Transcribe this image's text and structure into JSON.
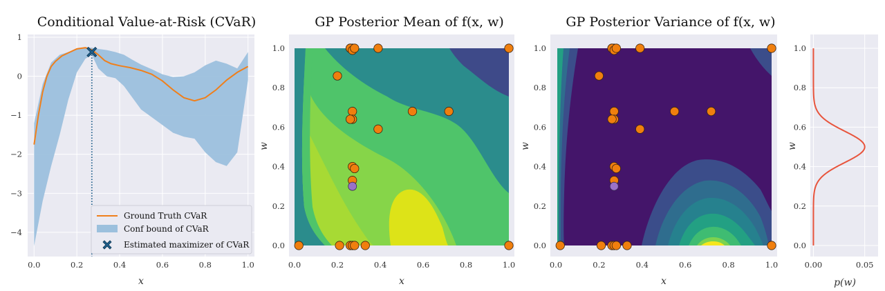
{
  "colors": {
    "axes_bg": "#eaeaf2",
    "grid": "#ffffff",
    "cvar_line": "#f07f1a",
    "band": "#9cc0dd",
    "marker": "#1f5f8b",
    "marker_edge": "#0d3552",
    "points_fill": "#f07f0e",
    "points_edge": "#3a2410",
    "purple_point": "#9a72c8",
    "pdf_line": "#e8543c"
  },
  "chart_data": [
    {
      "type": "line",
      "title": "Conditional Value-at-Risk (CVaR)",
      "xlabel": "x",
      "ylabel": "",
      "xlim": [
        -0.03,
        1.03
      ],
      "ylim": [
        -4.62,
        1.07
      ],
      "xticks": [
        "0.0",
        "0.2",
        "0.4",
        "0.6",
        "0.8",
        "1.0"
      ],
      "yticks": [
        "1",
        "0",
        "−1",
        "−2",
        "−3",
        "−4"
      ],
      "grid": true,
      "legend_position": "lower-right",
      "legend": [
        "Ground Truth CVaR",
        "Conf bound of CVaR",
        "Estimated maximizer of CVaR"
      ],
      "series": [
        {
          "name": "Ground Truth CVaR",
          "x": [
            0.0,
            0.02,
            0.04,
            0.06,
            0.08,
            0.1,
            0.13,
            0.16,
            0.2,
            0.24,
            0.27,
            0.3,
            0.33,
            0.36,
            0.4,
            0.45,
            0.5,
            0.55,
            0.6,
            0.65,
            0.7,
            0.75,
            0.8,
            0.85,
            0.9,
            0.95,
            1.0
          ],
          "values": [
            -1.75,
            -1.0,
            -0.4,
            0.0,
            0.25,
            0.38,
            0.52,
            0.6,
            0.7,
            0.73,
            0.68,
            0.55,
            0.4,
            0.32,
            0.27,
            0.22,
            0.15,
            0.05,
            -0.12,
            -0.35,
            -0.55,
            -0.63,
            -0.55,
            -0.35,
            -0.1,
            0.1,
            0.25
          ]
        },
        {
          "name": "Conf bound of CVaR",
          "x": [
            0.0,
            0.04,
            0.08,
            0.12,
            0.16,
            0.2,
            0.24,
            0.27,
            0.3,
            0.34,
            0.38,
            0.42,
            0.46,
            0.5,
            0.55,
            0.6,
            0.65,
            0.7,
            0.75,
            0.8,
            0.85,
            0.9,
            0.95,
            1.0
          ],
          "upper": [
            -1.2,
            -0.2,
            0.35,
            0.55,
            0.62,
            0.7,
            0.74,
            0.73,
            0.7,
            0.67,
            0.62,
            0.55,
            0.42,
            0.3,
            0.18,
            0.05,
            -0.02,
            0.0,
            0.1,
            0.28,
            0.4,
            0.32,
            0.2,
            0.62
          ],
          "lower": [
            -4.35,
            -3.2,
            -2.3,
            -1.5,
            -0.6,
            0.1,
            0.45,
            0.55,
            0.2,
            0.0,
            -0.05,
            -0.25,
            -0.55,
            -0.85,
            -1.05,
            -1.25,
            -1.45,
            -1.55,
            -1.6,
            -1.95,
            -2.2,
            -2.3,
            -1.95,
            -0.1
          ]
        }
      ],
      "maximizer": {
        "x": 0.27,
        "y": 0.62
      }
    },
    {
      "type": "heatmap",
      "title": "GP Posterior Mean of f(x, w)",
      "xlabel": "x",
      "ylabel": "w",
      "xlim": [
        0,
        1.03
      ],
      "ylim": [
        -0.045,
        1.045
      ],
      "xticks": [
        "0.0",
        "0.2",
        "0.4",
        "0.6",
        "0.8",
        "1.0"
      ],
      "yticks": [
        "0.0",
        "0.2",
        "0.4",
        "0.6",
        "0.8",
        "1.0"
      ],
      "levels": [
        "#3e4a89",
        "#2b8c8c",
        "#24aa83",
        "#4fc46a",
        "#86d549",
        "#c2df23",
        "#dde318"
      ],
      "points": {
        "x": [
          0.02,
          0.21,
          0.26,
          0.27,
          0.28,
          0.33,
          0.2,
          0.27,
          0.27,
          0.26,
          0.27,
          0.28,
          0.39,
          0.55,
          0.72,
          0.27,
          0.26,
          0.27,
          0.26,
          0.27,
          0.28,
          0.39,
          1.0,
          1.0
        ],
        "w": [
          0.0,
          0.0,
          0.0,
          0.0,
          0.0,
          0.0,
          0.86,
          0.68,
          0.64,
          0.64,
          0.4,
          0.39,
          0.59,
          0.68,
          0.68,
          0.33,
          1.0,
          1.0,
          1.0,
          0.99,
          1.0,
          1.0,
          1.0,
          0.0
        ]
      },
      "highlight_point": {
        "x": 0.27,
        "w": 0.3
      }
    },
    {
      "type": "heatmap",
      "title": "GP Posterior Variance of f(x, w)",
      "xlabel": "x",
      "ylabel": "w",
      "xlim": [
        0,
        1.03
      ],
      "ylim": [
        -0.045,
        1.045
      ],
      "xticks": [
        "0.0",
        "0.2",
        "0.4",
        "0.6",
        "0.8",
        "1.0"
      ],
      "yticks": [
        "0.0",
        "0.2",
        "0.4",
        "0.6",
        "0.8",
        "1.0"
      ],
      "levels": [
        "#44156a",
        "#3b4d8a",
        "#2f6d8e",
        "#26818e",
        "#23a083",
        "#3fbc72",
        "#7cd24f",
        "#c4df25",
        "#f6e61d"
      ],
      "points_same_as_mean": true
    },
    {
      "type": "line",
      "title": "",
      "xlabel": "p(w)",
      "ylabel": "w",
      "xlim": [
        -0.003,
        0.063
      ],
      "ylim": [
        -0.045,
        1.045
      ],
      "xticks": [
        "0.00",
        "0.05"
      ],
      "yticks": [
        "0.0",
        "0.2",
        "0.4",
        "0.6",
        "0.8",
        "1.0"
      ],
      "series": [
        {
          "name": "",
          "distribution": "normal",
          "mean": 0.5,
          "std": 0.08,
          "peak": 0.05
        }
      ]
    }
  ]
}
